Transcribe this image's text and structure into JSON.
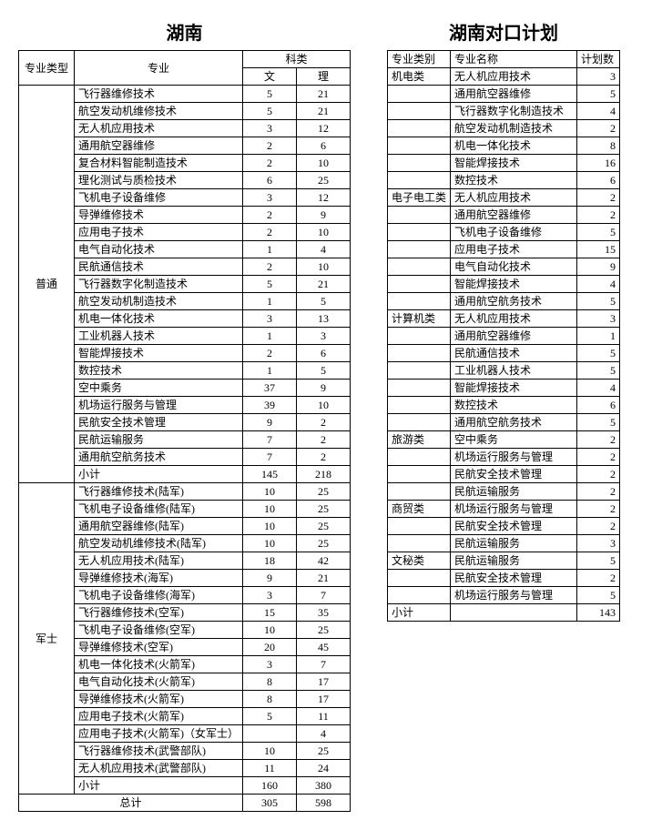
{
  "left": {
    "title": "湖南",
    "headers": {
      "type": "专业类型",
      "major": "专业",
      "subject": "科类",
      "wen": "文",
      "li": "理"
    },
    "groups": [
      {
        "type": "普通",
        "rows": [
          {
            "major": "飞行器维修技术",
            "wen": "5",
            "li": "21"
          },
          {
            "major": "航空发动机维修技术",
            "wen": "5",
            "li": "21"
          },
          {
            "major": "无人机应用技术",
            "wen": "3",
            "li": "12"
          },
          {
            "major": "通用航空器维修",
            "wen": "2",
            "li": "6"
          },
          {
            "major": "复合材料智能制造技术",
            "wen": "2",
            "li": "10"
          },
          {
            "major": "理化测试与质检技术",
            "wen": "6",
            "li": "25"
          },
          {
            "major": "飞机电子设备维修",
            "wen": "3",
            "li": "12"
          },
          {
            "major": "导弹维修技术",
            "wen": "2",
            "li": "9"
          },
          {
            "major": "应用电子技术",
            "wen": "2",
            "li": "10"
          },
          {
            "major": "电气自动化技术",
            "wen": "1",
            "li": "4"
          },
          {
            "major": "民航通信技术",
            "wen": "2",
            "li": "10"
          },
          {
            "major": "飞行器数字化制造技术",
            "wen": "5",
            "li": "21"
          },
          {
            "major": "航空发动机制造技术",
            "wen": "1",
            "li": "5"
          },
          {
            "major": "机电一体化技术",
            "wen": "3",
            "li": "13"
          },
          {
            "major": "工业机器人技术",
            "wen": "1",
            "li": "3"
          },
          {
            "major": "智能焊接技术",
            "wen": "2",
            "li": "6"
          },
          {
            "major": "数控技术",
            "wen": "1",
            "li": "5"
          },
          {
            "major": "空中乘务",
            "wen": "37",
            "li": "9"
          },
          {
            "major": "机场运行服务与管理",
            "wen": "39",
            "li": "10"
          },
          {
            "major": "民航安全技术管理",
            "wen": "9",
            "li": "2"
          },
          {
            "major": "民航运输服务",
            "wen": "7",
            "li": "2"
          },
          {
            "major": "通用航空航务技术",
            "wen": "7",
            "li": "2"
          },
          {
            "major": "小计",
            "wen": "145",
            "li": "218"
          }
        ]
      },
      {
        "type": "军士",
        "rows": [
          {
            "major": "飞行器维修技术(陆军)",
            "wen": "10",
            "li": "25"
          },
          {
            "major": "飞机电子设备维修(陆军)",
            "wen": "10",
            "li": "25"
          },
          {
            "major": "通用航空器维修(陆军)",
            "wen": "10",
            "li": "25"
          },
          {
            "major": "航空发动机维修技术(陆军)",
            "wen": "10",
            "li": "25"
          },
          {
            "major": "无人机应用技术(陆军)",
            "wen": "18",
            "li": "42"
          },
          {
            "major": "导弹维修技术(海军)",
            "wen": "9",
            "li": "21"
          },
          {
            "major": "飞机电子设备维修(海军)",
            "wen": "3",
            "li": "7"
          },
          {
            "major": "飞行器维修技术(空军)",
            "wen": "15",
            "li": "35"
          },
          {
            "major": "飞机电子设备维修(空军)",
            "wen": "10",
            "li": "25"
          },
          {
            "major": "导弹维修技术(空军)",
            "wen": "20",
            "li": "45"
          },
          {
            "major": "机电一体化技术(火箭军)",
            "wen": "3",
            "li": "7"
          },
          {
            "major": "电气自动化技术(火箭军)",
            "wen": "8",
            "li": "17"
          },
          {
            "major": "导弹维修技术(火箭军)",
            "wen": "8",
            "li": "17"
          },
          {
            "major": "应用电子技术(火箭军)",
            "wen": "5",
            "li": "11"
          },
          {
            "major": "应用电子技术(火箭军)（女军士）",
            "wen": "",
            "li": "4"
          },
          {
            "major": "飞行器维修技术(武警部队)",
            "wen": "10",
            "li": "25"
          },
          {
            "major": "无人机应用技术(武警部队)",
            "wen": "11",
            "li": "24"
          },
          {
            "major": "小计",
            "wen": "160",
            "li": "380"
          }
        ]
      }
    ],
    "total": {
      "label": "总计",
      "wen": "305",
      "li": "598"
    }
  },
  "right": {
    "title": "湖南对口计划",
    "headers": {
      "type": "专业类别",
      "name": "专业名称",
      "plan": "计划数"
    },
    "groups": [
      {
        "type": "机电类",
        "rows": [
          {
            "name": "无人机应用技术",
            "plan": "3"
          },
          {
            "name": "通用航空器维修",
            "plan": "5"
          },
          {
            "name": "飞行器数字化制造技术",
            "plan": "4"
          },
          {
            "name": "航空发动机制造技术",
            "plan": "2"
          },
          {
            "name": "机电一体化技术",
            "plan": "8"
          },
          {
            "name": "智能焊接技术",
            "plan": "16"
          },
          {
            "name": "数控技术",
            "plan": "6"
          }
        ]
      },
      {
        "type": "电子电工类",
        "rows": [
          {
            "name": "无人机应用技术",
            "plan": "2"
          },
          {
            "name": "通用航空器维修",
            "plan": "2"
          },
          {
            "name": "飞机电子设备维修",
            "plan": "5"
          },
          {
            "name": "应用电子技术",
            "plan": "15"
          },
          {
            "name": "电气自动化技术",
            "plan": "9"
          },
          {
            "name": "智能焊接技术",
            "plan": "4"
          },
          {
            "name": "通用航空航务技术",
            "plan": "5"
          }
        ]
      },
      {
        "type": "计算机类",
        "rows": [
          {
            "name": "无人机应用技术",
            "plan": "3"
          },
          {
            "name": "通用航空器维修",
            "plan": "1"
          },
          {
            "name": "民航通信技术",
            "plan": "5"
          },
          {
            "name": "工业机器人技术",
            "plan": "5"
          },
          {
            "name": "智能焊接技术",
            "plan": "4"
          },
          {
            "name": "数控技术",
            "plan": "6"
          },
          {
            "name": "通用航空航务技术",
            "plan": "5"
          }
        ]
      },
      {
        "type": "旅游类",
        "rows": [
          {
            "name": "空中乘务",
            "plan": "2"
          },
          {
            "name": "机场运行服务与管理",
            "plan": "2"
          },
          {
            "name": "民航安全技术管理",
            "plan": "2"
          },
          {
            "name": "民航运输服务",
            "plan": "2"
          }
        ]
      },
      {
        "type": "商贸类",
        "rows": [
          {
            "name": "机场运行服务与管理",
            "plan": "2"
          },
          {
            "name": "民航安全技术管理",
            "plan": "2"
          },
          {
            "name": "民航运输服务",
            "plan": "3"
          }
        ]
      },
      {
        "type": "文秘类",
        "rows": [
          {
            "name": "民航运输服务",
            "plan": "5"
          },
          {
            "name": "民航安全技术管理",
            "plan": "2"
          },
          {
            "name": "机场运行服务与管理",
            "plan": "5"
          }
        ]
      }
    ],
    "subtotal": {
      "label": "小计",
      "plan": "143"
    }
  }
}
